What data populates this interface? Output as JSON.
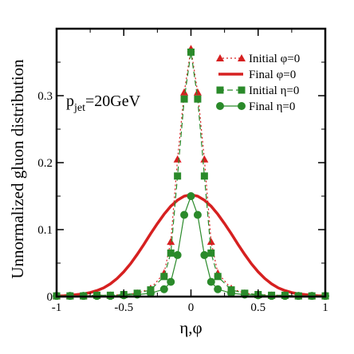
{
  "chart_data": {
    "type": "line",
    "xlabel": "η,φ",
    "ylabel": "Unnormalized gluon distribution",
    "xlim": [
      -1,
      1
    ],
    "ylim": [
      0,
      0.4
    ],
    "xticks": [
      -1,
      -0.5,
      0,
      0.5,
      1
    ],
    "xtick_labels": [
      "-1",
      "-0.5",
      "0",
      "0.5",
      "1"
    ],
    "yticks": [
      0,
      0.1,
      0.2,
      0.3
    ],
    "ytick_labels": [
      "0",
      "0.1",
      "0.2",
      "0.3"
    ],
    "grid": false,
    "legend_position": "top-right",
    "annotation": {
      "main": "p",
      "sub": "jet",
      "tail": "=20GeV"
    },
    "series": [
      {
        "name": "Initial  φ=0",
        "color": "#d62020",
        "line": "dotted",
        "marker": "triangle",
        "x": [
          -1,
          -0.9,
          -0.8,
          -0.7,
          -0.6,
          -0.5,
          -0.4,
          -0.3,
          -0.2,
          -0.15,
          -0.1,
          -0.05,
          0,
          0.05,
          0.1,
          0.15,
          0.2,
          0.3,
          0.4,
          0.5,
          0.6,
          0.7,
          0.8,
          0.9,
          1
        ],
        "y": [
          0.001,
          0.001,
          0.001,
          0.002,
          0.002,
          0.003,
          0.005,
          0.012,
          0.035,
          0.082,
          0.205,
          0.305,
          0.37,
          0.305,
          0.205,
          0.082,
          0.035,
          0.012,
          0.005,
          0.003,
          0.002,
          0.002,
          0.001,
          0.001,
          0.001
        ]
      },
      {
        "name": "Final  φ=0",
        "color": "#d62020",
        "line": "solid",
        "marker": "none",
        "x": [
          -1,
          -0.95,
          -0.9,
          -0.85,
          -0.8,
          -0.75,
          -0.7,
          -0.65,
          -0.6,
          -0.55,
          -0.5,
          -0.45,
          -0.4,
          -0.35,
          -0.3,
          -0.25,
          -0.2,
          -0.15,
          -0.1,
          -0.05,
          0,
          0.05,
          0.1,
          0.15,
          0.2,
          0.25,
          0.3,
          0.35,
          0.4,
          0.45,
          0.5,
          0.55,
          0.6,
          0.65,
          0.7,
          0.75,
          0.8,
          0.85,
          0.9,
          0.95,
          1
        ],
        "y": [
          0.001,
          0.001,
          0.002,
          0.003,
          0.004,
          0.006,
          0.009,
          0.013,
          0.019,
          0.027,
          0.037,
          0.049,
          0.063,
          0.078,
          0.094,
          0.109,
          0.123,
          0.135,
          0.144,
          0.15,
          0.152,
          0.15,
          0.144,
          0.135,
          0.123,
          0.109,
          0.094,
          0.078,
          0.063,
          0.049,
          0.037,
          0.027,
          0.019,
          0.013,
          0.009,
          0.006,
          0.004,
          0.003,
          0.002,
          0.001,
          0.001
        ]
      },
      {
        "name": "Initial  η=0",
        "color": "#2a8a2a",
        "line": "dashed",
        "marker": "square",
        "x": [
          -1,
          -0.9,
          -0.8,
          -0.7,
          -0.6,
          -0.5,
          -0.4,
          -0.3,
          -0.2,
          -0.15,
          -0.1,
          -0.05,
          0,
          0.05,
          0.1,
          0.15,
          0.2,
          0.3,
          0.4,
          0.5,
          0.6,
          0.7,
          0.8,
          0.9,
          1
        ],
        "y": [
          0.001,
          0.001,
          0.001,
          0.002,
          0.002,
          0.003,
          0.005,
          0.01,
          0.03,
          0.065,
          0.18,
          0.295,
          0.365,
          0.295,
          0.18,
          0.065,
          0.03,
          0.01,
          0.005,
          0.003,
          0.002,
          0.002,
          0.001,
          0.001,
          0.001
        ]
      },
      {
        "name": "Final  η=0",
        "color": "#2a8a2a",
        "line": "solid",
        "marker": "circle",
        "x": [
          -1,
          -0.9,
          -0.8,
          -0.7,
          -0.6,
          -0.5,
          -0.4,
          -0.3,
          -0.2,
          -0.15,
          -0.1,
          -0.05,
          0,
          0.05,
          0.1,
          0.15,
          0.2,
          0.3,
          0.4,
          0.5,
          0.6,
          0.7,
          0.8,
          0.9,
          1
        ],
        "y": [
          0.001,
          0.001,
          0.001,
          0.001,
          0.001,
          0.002,
          0.003,
          0.005,
          0.011,
          0.022,
          0.062,
          0.122,
          0.15,
          0.122,
          0.062,
          0.022,
          0.011,
          0.005,
          0.003,
          0.002,
          0.001,
          0.001,
          0.001,
          0.001,
          0.001
        ]
      }
    ]
  }
}
